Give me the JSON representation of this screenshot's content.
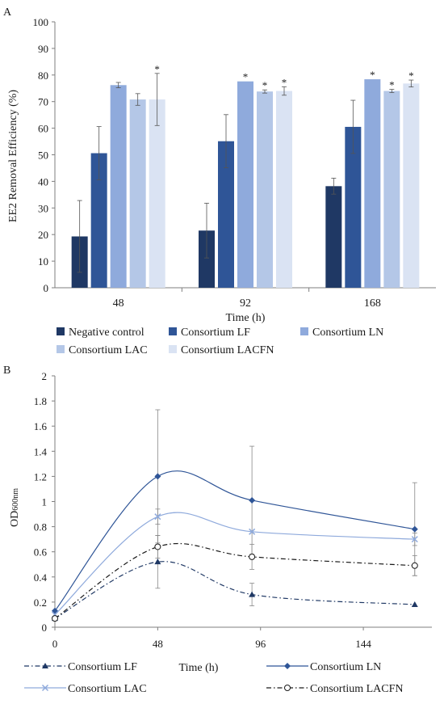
{
  "chart_data": [
    {
      "panel_label": "A",
      "type": "bar",
      "title": "",
      "xlabel": "Time (h)",
      "ylabel": "EE2 Removal Efficiency (%)",
      "ylim": [
        0,
        100
      ],
      "yticks": [
        "0",
        "10",
        "20",
        "30",
        "40",
        "50",
        "60",
        "70",
        "80",
        "90",
        "100"
      ],
      "categories": [
        "48",
        "92",
        "168"
      ],
      "grid": false,
      "legend_position": "bottom",
      "significance_marker": "*",
      "series": [
        {
          "name": "Negative control",
          "color": "#1f3864",
          "values": [
            19.3,
            21.5,
            38.2
          ],
          "errors": [
            13.5,
            10.3,
            3.0
          ],
          "significant": [
            false,
            false,
            false
          ]
        },
        {
          "name": "Consortium LF",
          "color": "#2f5597",
          "values": [
            50.6,
            55.1,
            60.5
          ],
          "errors": [
            10.0,
            10.0,
            10.0
          ],
          "significant": [
            false,
            false,
            false
          ]
        },
        {
          "name": "Consortium LN",
          "color": "#8faadc",
          "values": [
            76.2,
            77.6,
            78.4
          ],
          "errors": [
            1.0,
            0.0,
            0.0
          ],
          "significant": [
            false,
            true,
            true
          ]
        },
        {
          "name": "Consortium LAC",
          "color": "#b4c7e7",
          "values": [
            70.8,
            73.8,
            74.0
          ],
          "errors": [
            2.2,
            0.6,
            0.6
          ],
          "significant": [
            false,
            true,
            true
          ]
        },
        {
          "name": "Consortium LACFN",
          "color": "#dae3f3",
          "values": [
            70.8,
            74.0,
            76.8
          ],
          "errors": [
            9.8,
            1.6,
            1.3
          ],
          "significant": [
            true,
            true,
            true
          ]
        }
      ]
    },
    {
      "panel_label": "B",
      "type": "line",
      "title": "",
      "xlabel": "Time (h)",
      "ylabel_main": "OD",
      "ylabel_sub": "600nm",
      "xlim": [
        0,
        176
      ],
      "ylim": [
        0,
        2
      ],
      "xticks": [
        0,
        48,
        96,
        144
      ],
      "xtick_labels": [
        "0",
        "48",
        "96",
        "144"
      ],
      "yticks": [
        "0",
        "0.2",
        "0.4",
        "0.6",
        "0.8",
        "1",
        "1.2",
        "1.4",
        "1.6",
        "1.8",
        "2"
      ],
      "grid": false,
      "legend_position": "bottom",
      "series": [
        {
          "name": "Consortium LF",
          "color": "#1f3864",
          "dash": "dashdot",
          "marker": "triangle",
          "x": [
            0,
            48,
            92,
            168
          ],
          "y": [
            0.07,
            0.52,
            0.26,
            0.18
          ],
          "errors": [
            0.0,
            0.21,
            0.09,
            0.0
          ]
        },
        {
          "name": "Consortium LN",
          "color": "#2f5597",
          "dash": "solid",
          "marker": "diamond",
          "x": [
            0,
            48,
            92,
            168
          ],
          "y": [
            0.13,
            1.2,
            1.01,
            0.78
          ],
          "errors": [
            0.0,
            0.53,
            0.43,
            0.37
          ]
        },
        {
          "name": "Consortium LAC",
          "color": "#8faadc",
          "dash": "solid",
          "marker": "x",
          "x": [
            0,
            48,
            92,
            168
          ],
          "y": [
            0.1,
            0.88,
            0.76,
            0.7
          ],
          "errors": [
            0.0,
            0.06,
            0.0,
            0.05
          ]
        },
        {
          "name": "Consortium LACFN",
          "color": "#1a1a1a",
          "dash": "dashdot",
          "marker": "circle",
          "x": [
            0,
            48,
            92,
            168
          ],
          "y": [
            0.07,
            0.64,
            0.56,
            0.49
          ],
          "errors": [
            0.0,
            0.09,
            0.1,
            0.08
          ]
        }
      ]
    }
  ]
}
